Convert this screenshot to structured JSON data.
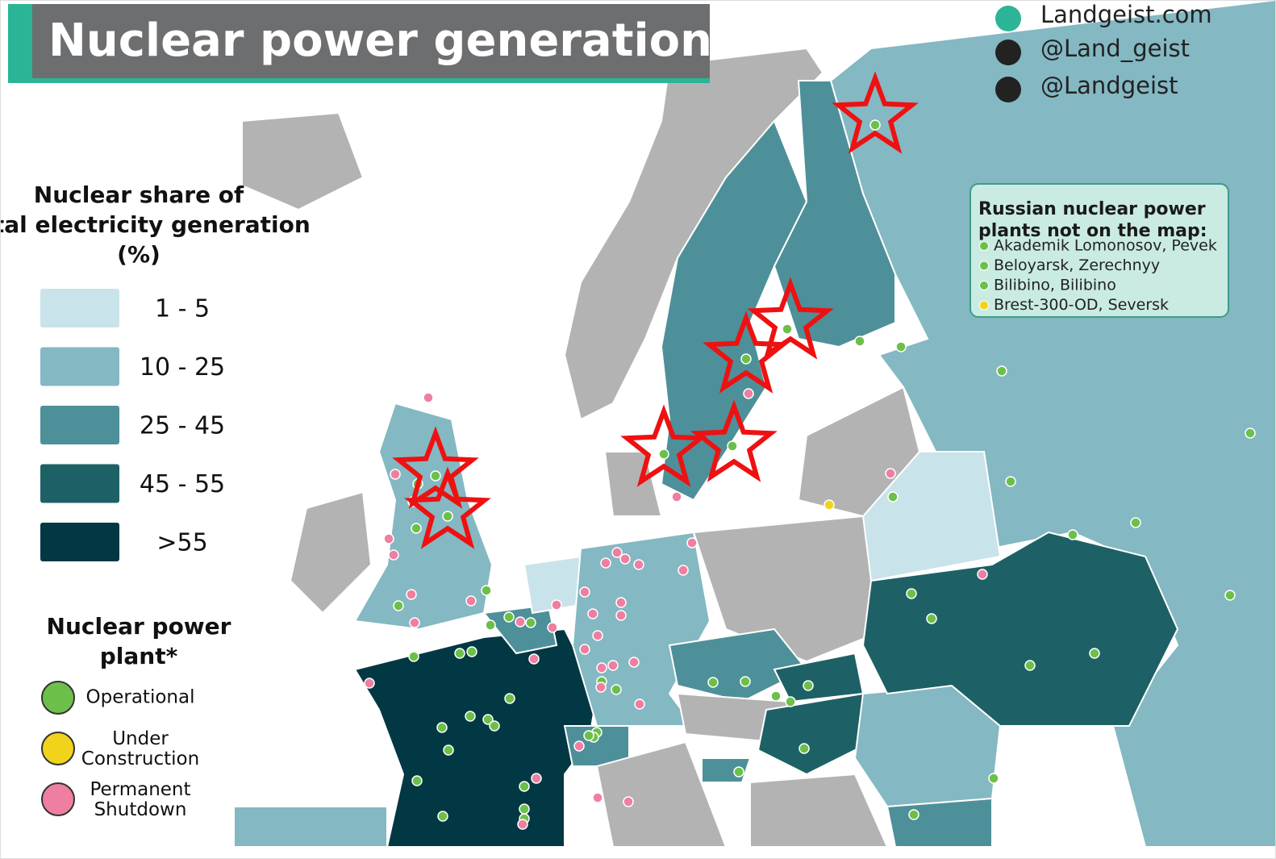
{
  "header": {
    "title": "Nuclear power generation"
  },
  "social": [
    "Landgeist.com",
    "@Land_geist",
    "@Landgeist"
  ],
  "share_legend": {
    "title": "Nuclear share of total electricity generation (%)",
    "items": [
      {
        "label": "1  -  5",
        "color": "#c9e3ea"
      },
      {
        "label": "10 - 25",
        "color": "#84b8c3"
      },
      {
        "label": "25 - 45",
        "color": "#4e9099"
      },
      {
        "label": "45 - 55",
        "color": "#1d6166"
      },
      {
        "label": ">55",
        "color": "#023843"
      }
    ]
  },
  "plant_legend": {
    "title": "Nuclear power plant*",
    "items": [
      {
        "label": "Operational",
        "color": "#6cc04a"
      },
      {
        "label": "Under Construction",
        "color": "#f2d31b"
      },
      {
        "label": "Permanent Shutdown",
        "color": "#ee7fa0"
      }
    ]
  },
  "russia_box": {
    "title": "Russian nuclear power plants not on the map:",
    "items": [
      {
        "label": "Akademik Lomonosov, Pevek",
        "status": 0
      },
      {
        "label": "Beloyarsk, Zerechnyy",
        "status": 0
      },
      {
        "label": "Bilibino, Bilibino",
        "status": 0
      },
      {
        "label": "Brest-300-OD, Seversk",
        "status": 1
      }
    ]
  }
}
